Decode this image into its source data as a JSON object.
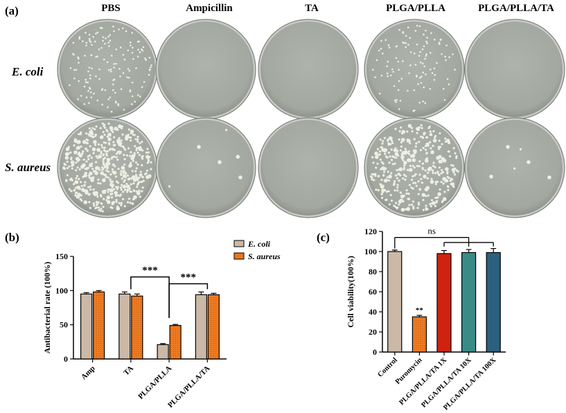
{
  "panel_a": {
    "letter": "(a)",
    "columns": [
      "PBS",
      "Ampicillin",
      "TA",
      "PLGA/PLLA",
      "PLGA/PLLA/TA"
    ],
    "rows": [
      "E. coli",
      "S. aureus"
    ],
    "plate_color": "#a3a8a1",
    "colony_color": "#eeeee2"
  },
  "chart_data": [
    {
      "type": "bar",
      "panel": "(b)",
      "categories": [
        "Amp",
        "TA",
        "PLGA/PLLA",
        "PLGA/PLLA/TA"
      ],
      "series": [
        {
          "name": "E. coli",
          "values": [
            95,
            95,
            21,
            94
          ],
          "errors": [
            2,
            3,
            1.5,
            4
          ],
          "color": "#cbb8a6"
        },
        {
          "name": "S. aureus",
          "values": [
            98,
            92,
            49,
            94
          ],
          "errors": [
            2,
            3,
            1.5,
            2
          ],
          "color": "#f07c22"
        }
      ],
      "ylabel": "Antibacterial rate (100%)",
      "ylim": [
        0,
        150
      ],
      "yticks": [
        0,
        50,
        100,
        150
      ],
      "legend": "top-right",
      "significance": [
        {
          "from": "TA",
          "to": "PLGA/PLLA",
          "label": "***"
        },
        {
          "from": "PLGA/PLLA",
          "to": "PLGA/PLLA/TA",
          "label": "***"
        }
      ]
    },
    {
      "type": "bar",
      "panel": "(c)",
      "categories": [
        "Control",
        "Puromycin",
        "PLGA/PLLA/TA 1X",
        "PLGA/PLLA/TA 10X",
        "PLGA/PLLA/TA 100X"
      ],
      "values": [
        100,
        35,
        98,
        99,
        99
      ],
      "errors": [
        1.5,
        1.5,
        3,
        3,
        4
      ],
      "colors": [
        "#cbb8a6",
        "#f07c22",
        "#d0230f",
        "#3a8a86",
        "#2b607e"
      ],
      "patterned": [
        false,
        true,
        false,
        false,
        false
      ],
      "bar_labels": [
        "",
        "**",
        "",
        "",
        ""
      ],
      "ylabel": "Cell viability(100%)",
      "ylim": [
        0,
        120
      ],
      "yticks": [
        0,
        20,
        40,
        60,
        80,
        100,
        120
      ],
      "bracket_label": "ns"
    }
  ]
}
